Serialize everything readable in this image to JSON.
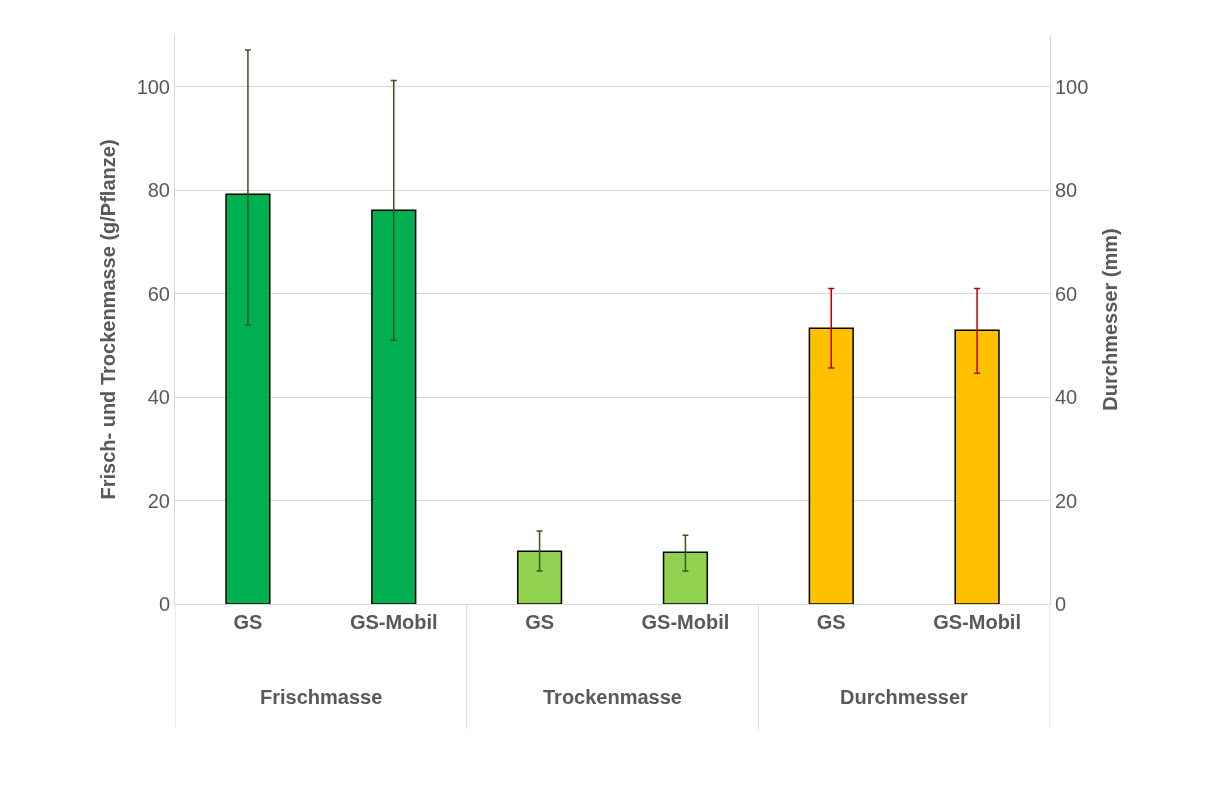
{
  "chart_data": {
    "type": "bar",
    "ylabel": "Frisch- und Trockenmasse (g/Pflanze)",
    "y2label": "Durchmesser (mm)",
    "categories": [
      "GS",
      "GS-Mobil",
      "GS",
      "GS-Mobil",
      "GS",
      "GS-Mobil"
    ],
    "series": [
      {
        "color": "#00b050",
        "values": [
          79.2,
          76.1,
          null,
          null,
          null,
          null
        ],
        "errors": [
          [
            53.9,
            107.1
          ],
          [
            51.0,
            101.2
          ],
          null,
          null,
          null,
          null
        ]
      },
      {
        "color": "#92d050",
        "values": [
          null,
          null,
          10.2,
          10.0,
          null,
          null
        ],
        "errors": [
          null,
          null,
          [
            6.4,
            14.1
          ],
          [
            6.4,
            13.3
          ],
          null,
          null
        ]
      },
      {
        "color": "#ffc000",
        "axis": "y2",
        "values": [
          null,
          null,
          null,
          null,
          53.3,
          52.9
        ],
        "errors": [
          null,
          null,
          null,
          null,
          [
            45.6,
            61.0
          ],
          [
            44.6,
            61.0
          ]
        ]
      }
    ],
    "annotations": [
      "Frischmasse",
      "Trockenmasse",
      "Durchmesser"
    ],
    "ylim": [
      0,
      110
    ],
    "yticks": [
      0,
      20,
      40,
      60,
      80,
      100
    ],
    "y2lim": [
      0,
      110
    ],
    "y2ticks": [
      0,
      20,
      40,
      60,
      80,
      100
    ],
    "grid": "y",
    "legend": false
  }
}
